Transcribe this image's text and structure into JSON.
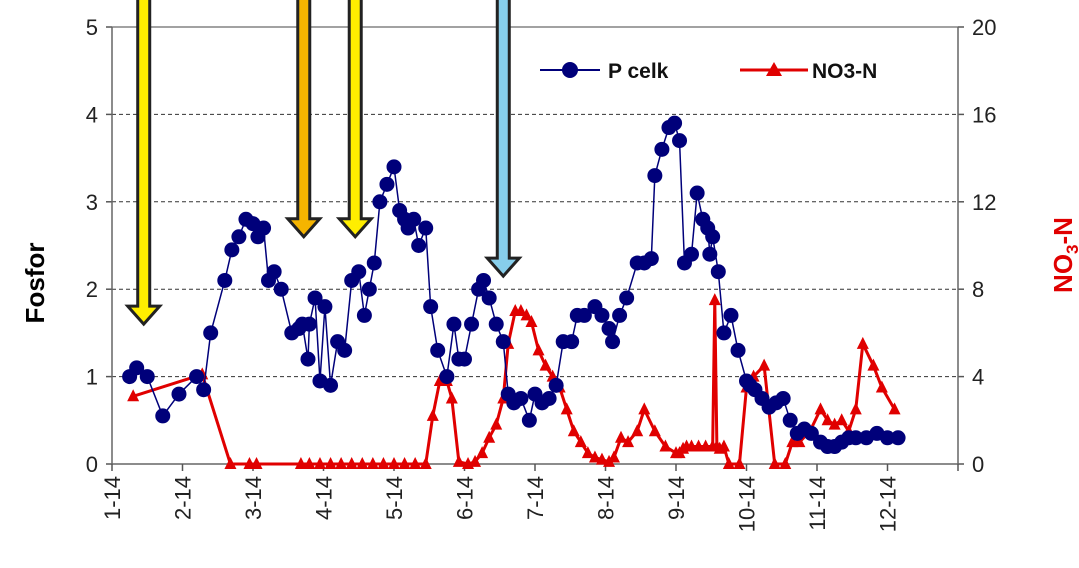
{
  "chart_data": {
    "type": "line",
    "y_left": {
      "label": "Fosfor",
      "ylim": [
        0,
        5
      ],
      "ticks": [
        "0",
        "1",
        "2",
        "3",
        "4",
        "5"
      ]
    },
    "y_right": {
      "label_main": "NO",
      "label_sub": "3",
      "label_tail": "-N",
      "ylim": [
        0,
        20
      ],
      "ticks": [
        "0",
        "4",
        "8",
        "12",
        "16",
        "20"
      ]
    },
    "x_axis": {
      "xlim": [
        1,
        13
      ],
      "ticks": [
        1,
        2,
        3,
        4,
        5,
        6,
        7,
        8,
        9,
        10,
        11,
        12
      ],
      "tick_labels": [
        "1-14",
        "2-14",
        "3-14",
        "4-14",
        "5-14",
        "6-14",
        "7-14",
        "8-14",
        "9-14",
        "10-14",
        "11-14",
        "12-14"
      ]
    },
    "grid": "horizontal-dashed",
    "legend_position": "top-right",
    "colors": {
      "p_celk": "#00007a",
      "no3": "#e00000",
      "yellow_arrow": "#ffee00",
      "orange_arrow": "#f5b400",
      "blue_arrow": "#87ceeb"
    },
    "series": [
      {
        "name": "P celk",
        "axis": "left",
        "marker": "circle",
        "x": [
          1.25,
          1.35,
          1.5,
          1.72,
          1.95,
          2.2,
          2.3,
          2.4,
          2.6,
          2.7,
          2.8,
          2.9,
          3.0,
          3.07,
          3.15,
          3.22,
          3.3,
          3.4,
          3.55,
          3.65,
          3.7,
          3.78,
          3.8,
          3.88,
          3.95,
          4.02,
          4.1,
          4.2,
          4.3,
          4.4,
          4.5,
          4.58,
          4.65,
          4.72,
          4.8,
          4.9,
          5.0,
          5.08,
          5.15,
          5.2,
          5.28,
          5.35,
          5.45,
          5.52,
          5.62,
          5.75,
          5.85,
          5.92,
          6.0,
          6.1,
          6.2,
          6.27,
          6.35,
          6.45,
          6.55,
          6.62,
          6.7,
          6.8,
          6.92,
          7.0,
          7.1,
          7.2,
          7.3,
          7.4,
          7.52,
          7.6,
          7.7,
          7.85,
          7.95,
          8.05,
          8.1,
          8.2,
          8.3,
          8.45,
          8.55,
          8.65,
          8.7,
          8.8,
          8.9,
          8.98,
          9.05,
          9.12,
          9.22,
          9.3,
          9.38,
          9.45,
          9.48,
          9.52,
          9.6,
          9.68,
          9.78,
          9.88,
          10.0,
          10.05,
          10.12,
          10.22,
          10.32,
          10.42,
          10.52,
          10.62,
          10.72,
          10.82,
          10.92,
          11.05,
          11.15,
          11.25,
          11.35,
          11.45,
          11.55,
          11.7,
          11.85,
          12.0,
          12.15
        ],
        "values": [
          1.0,
          1.1,
          1.0,
          0.55,
          0.8,
          1.0,
          0.85,
          1.5,
          2.1,
          2.45,
          2.6,
          2.8,
          2.75,
          2.6,
          2.7,
          2.1,
          2.2,
          2.0,
          1.5,
          1.55,
          1.6,
          1.2,
          1.6,
          1.9,
          0.95,
          1.8,
          0.9,
          1.4,
          1.3,
          2.1,
          2.2,
          1.7,
          2.0,
          2.3,
          3.0,
          3.2,
          3.4,
          2.9,
          2.8,
          2.7,
          2.8,
          2.5,
          2.7,
          1.8,
          1.3,
          1.0,
          1.6,
          1.2,
          1.2,
          1.6,
          2.0,
          2.1,
          1.9,
          1.6,
          1.4,
          0.8,
          0.7,
          0.75,
          0.5,
          0.8,
          0.7,
          0.75,
          0.9,
          1.4,
          1.4,
          1.7,
          1.7,
          1.8,
          1.7,
          1.55,
          1.4,
          1.7,
          1.9,
          2.3,
          2.3,
          2.35,
          3.3,
          3.6,
          3.85,
          3.9,
          3.7,
          2.3,
          2.4,
          3.1,
          2.8,
          2.7,
          2.4,
          2.6,
          2.2,
          1.5,
          1.7,
          1.3,
          0.95,
          0.9,
          0.85,
          0.75,
          0.65,
          0.7,
          0.75,
          0.5,
          0.35,
          0.4,
          0.35,
          0.25,
          0.2,
          0.2,
          0.25,
          0.3,
          0.3,
          0.3,
          0.35,
          0.3,
          0.3
        ]
      },
      {
        "name": "NO3-N",
        "axis": "right",
        "marker": "triangle",
        "x": [
          1.3,
          2.28,
          2.68,
          2.95,
          3.05,
          3.68,
          3.8,
          3.95,
          4.1,
          4.25,
          4.4,
          4.55,
          4.7,
          4.85,
          5.0,
          5.15,
          5.3,
          5.45,
          5.55,
          5.65,
          5.75,
          5.82,
          5.92,
          6.05,
          6.15,
          6.25,
          6.35,
          6.45,
          6.55,
          6.62,
          6.72,
          6.8,
          6.88,
          6.95,
          7.05,
          7.15,
          7.25,
          7.35,
          7.45,
          7.55,
          7.65,
          7.75,
          7.85,
          7.95,
          8.05,
          8.12,
          8.22,
          8.32,
          8.45,
          8.55,
          8.7,
          8.85,
          9.0,
          9.05,
          9.1,
          9.15,
          9.22,
          9.32,
          9.42,
          9.52,
          9.55,
          9.58,
          9.62,
          9.68,
          9.75,
          9.9,
          10.0,
          10.1,
          10.25,
          10.4,
          10.55,
          10.65,
          10.75,
          10.9,
          11.05,
          11.15,
          11.25,
          11.35,
          11.45,
          11.55,
          11.65,
          11.8,
          11.92,
          12.1
        ],
        "values": [
          3.1,
          4.1,
          0,
          0,
          0,
          0,
          0,
          0,
          0,
          0,
          0,
          0,
          0,
          0,
          0,
          0,
          0,
          0,
          2.2,
          3.8,
          3.8,
          3.0,
          0.1,
          0,
          0.1,
          0.5,
          1.2,
          1.8,
          3.0,
          5.5,
          7.0,
          7.0,
          6.8,
          6.5,
          5.2,
          4.5,
          4.0,
          3.5,
          2.5,
          1.5,
          1.0,
          0.5,
          0.3,
          0.2,
          0.1,
          0.3,
          1.2,
          1.0,
          1.5,
          2.5,
          1.5,
          0.8,
          0.5,
          0.5,
          0.7,
          0.8,
          0.8,
          0.8,
          0.8,
          0.8,
          7.5,
          0.8,
          0.7,
          0.8,
          0,
          0,
          3.5,
          4.0,
          4.5,
          0,
          0,
          1.0,
          1.0,
          1.5,
          2.5,
          2.0,
          1.8,
          2.0,
          1.5,
          2.5,
          5.5,
          4.5,
          3.5,
          2.5
        ]
      }
    ],
    "arrows": [
      {
        "x": 1.45,
        "y_tip": 1.6,
        "color": "yellow"
      },
      {
        "x": 3.72,
        "y_tip": 2.6,
        "color": "orange"
      },
      {
        "x": 4.45,
        "y_tip": 2.6,
        "color": "yellow"
      },
      {
        "x": 6.55,
        "y_tip": 2.15,
        "color": "blue"
      }
    ]
  }
}
